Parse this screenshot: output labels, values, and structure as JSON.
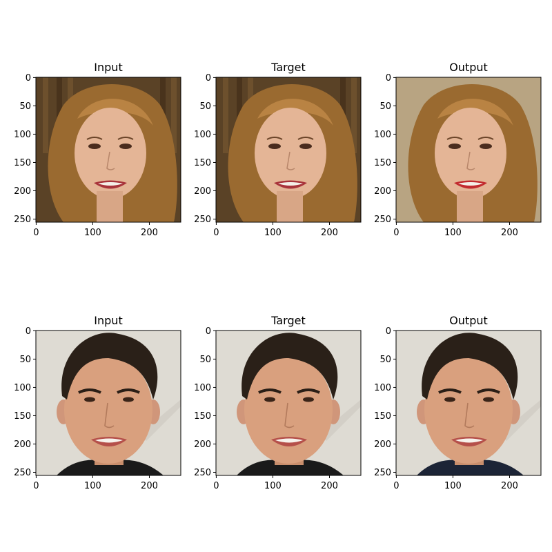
{
  "figure": {
    "rows": [
      {
        "panels": [
          {
            "title": "Input",
            "kind": "woman",
            "variant": "input"
          },
          {
            "title": "Target",
            "kind": "woman",
            "variant": "target"
          },
          {
            "title": "Output",
            "kind": "woman",
            "variant": "output"
          }
        ]
      },
      {
        "panels": [
          {
            "title": "Input",
            "kind": "man",
            "variant": "input"
          },
          {
            "title": "Target",
            "kind": "man",
            "variant": "target"
          },
          {
            "title": "Output",
            "kind": "man",
            "variant": "output"
          }
        ]
      }
    ],
    "x_ticks": [
      0,
      100,
      200
    ],
    "y_ticks": [
      0,
      50,
      100,
      150,
      200,
      250
    ],
    "image_extent": 256,
    "colors": {
      "woman_hair": "#9a6a30",
      "woman_skin": "#e4b596",
      "woman_lips": "#a8333a",
      "man_hair": "#2a2018",
      "man_skin": "#d9a07e",
      "man_bg": "#dedbd3",
      "woman_bg_input": "#5a4226",
      "woman_bg_output": "#b8a482"
    }
  }
}
